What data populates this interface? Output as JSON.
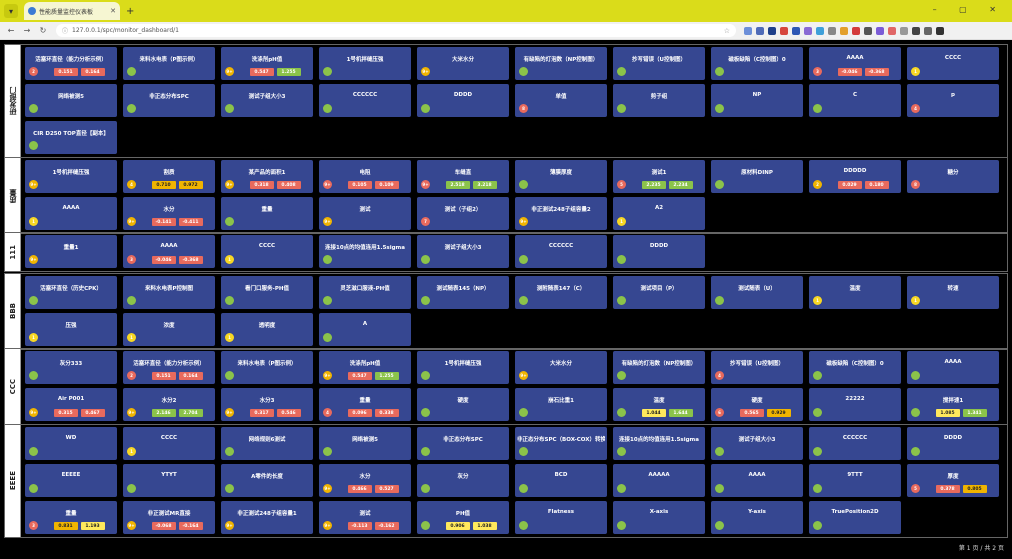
{
  "browser": {
    "tab_title": "性能质量监控仪表板",
    "url": "127.0.0.1/spc/monitor_dashboard/1",
    "window_controls": "– ▢ ✕"
  },
  "pagination": "第 1 页 / 共 2 页",
  "groups": [
    {
      "label": "研发部门",
      "rows": [
        [
          {
            "name": "活塞环直径（能力分析示例）",
            "ind": "r",
            "ind_text": "2",
            "vals": [
              [
                "0.151",
                "r"
              ],
              [
                "0.164",
                "r"
              ]
            ]
          },
          {
            "name": "来料水电表（P图示例）",
            "ind": "g"
          },
          {
            "name": "洗涤剂pH值",
            "ind": "o",
            "ind_text": "9+",
            "vals": [
              [
                "0.547",
                "r"
              ],
              [
                "1.255",
                "g"
              ]
            ]
          },
          {
            "name": "1号机拌缝压强",
            "ind": "g"
          },
          {
            "name": "大米水分",
            "ind": "o",
            "ind_text": "9+"
          },
          {
            "name": "有缺陷的灯泡数（NP控制图）",
            "ind": "g"
          },
          {
            "name": "抄写错误（U控制图）",
            "ind": "g"
          },
          {
            "name": "磁板缺陷（C控制图）0",
            "ind": "g"
          },
          {
            "name": "AAAA",
            "ind": "r",
            "ind_text": "3",
            "vals": [
              [
                "-0.046",
                "r"
              ],
              [
                "-0.368",
                "r"
              ]
            ]
          },
          {
            "name": "CCCC",
            "ind": "y",
            "ind_text": "1"
          }
        ],
        [
          {
            "name": "网络被测5",
            "ind": "g"
          },
          {
            "name": "非正态分布SPC",
            "ind": "g"
          },
          {
            "name": "测试子组大小3",
            "ind": "g"
          },
          {
            "name": "CCCCCC",
            "ind": "g"
          },
          {
            "name": "DDDD",
            "ind": "g"
          },
          {
            "name": "单值",
            "ind": "r",
            "ind_text": "8"
          },
          {
            "name": "剪子组",
            "ind": "g"
          },
          {
            "name": "NP",
            "ind": "g"
          },
          {
            "name": "C",
            "ind": "g"
          },
          {
            "name": "p",
            "ind": "r",
            "ind_text": "4"
          }
        ],
        [
          {
            "name": "CIR D250 TOP直径【副本】",
            "ind": "g"
          }
        ]
      ]
    },
    {
      "label": "质量",
      "rows": [
        [
          {
            "name": "1号机拌缝压强",
            "ind": "o",
            "ind_text": "9+"
          },
          {
            "name": "割质",
            "ind": "o",
            "ind_text": "4",
            "vals": [
              [
                "0.710",
                "o"
              ],
              [
                "0.972",
                "o"
              ]
            ]
          },
          {
            "name": "某产品的面积1",
            "ind": "o",
            "ind_text": "9+",
            "vals": [
              [
                "0.318",
                "r"
              ],
              [
                "0.408",
                "r"
              ]
            ]
          },
          {
            "name": "电阻",
            "ind": "r",
            "ind_text": "9+",
            "vals": [
              [
                "0.105",
                "r"
              ],
              [
                "0.109",
                "r"
              ]
            ]
          },
          {
            "name": "车缝直",
            "ind": "r",
            "ind_text": "9+",
            "vals": [
              [
                "2.518",
                "g"
              ],
              [
                "3.218",
                "g"
              ]
            ]
          },
          {
            "name": "薄膜厚度",
            "ind": "g"
          },
          {
            "name": "测试1",
            "ind": "r",
            "ind_text": "5",
            "vals": [
              [
                "2.235",
                "g"
              ],
              [
                "2.234",
                "g"
              ]
            ]
          },
          {
            "name": "原材料DINP",
            "ind": "g"
          },
          {
            "name": "DDDDD",
            "ind": "o",
            "ind_text": "2",
            "vals": [
              [
                "0.029",
                "r"
              ],
              [
                "0.180",
                "r"
              ]
            ]
          },
          {
            "name": "糖分",
            "ind": "r",
            "ind_text": "8"
          }
        ],
        [
          {
            "name": "AAAA",
            "ind": "y",
            "ind_text": "1"
          },
          {
            "name": "水分",
            "ind": "o",
            "ind_text": "9+",
            "vals": [
              [
                "-0.141",
                "r"
              ],
              [
                "-0.411",
                "r"
              ]
            ]
          },
          {
            "name": "重量",
            "ind": "g"
          },
          {
            "name": "测试",
            "ind": "o",
            "ind_text": "9+"
          },
          {
            "name": "测试（子组2）",
            "ind": "r",
            "ind_text": "7"
          },
          {
            "name": "非正测试248子组容量2",
            "ind": "o",
            "ind_text": "9+"
          },
          {
            "name": "A2",
            "ind": "y",
            "ind_text": "1"
          }
        ]
      ]
    },
    {
      "label": "111",
      "rows": [
        [
          {
            "name": "重量1",
            "ind": "o",
            "ind_text": "9+"
          },
          {
            "name": "AAAA",
            "ind": "r",
            "ind_text": "3",
            "vals": [
              [
                "-0.046",
                "r"
              ],
              [
                "-0.368",
                "r"
              ]
            ]
          },
          {
            "name": "CCCC",
            "ind": "y",
            "ind_text": "1"
          },
          {
            "name": "连接10点的均值连用1.5sigma",
            "ind": "g"
          },
          {
            "name": "测试子组大小3",
            "ind": "g"
          },
          {
            "name": "CCCCCC",
            "ind": "g"
          },
          {
            "name": "DDDD",
            "ind": "g"
          }
        ]
      ]
    },
    {
      "label": "BBB",
      "rows": [
        [
          {
            "name": "活塞环直径（历史CPK）",
            "ind": "g"
          },
          {
            "name": "来料水电表P控制图",
            "ind": "g"
          },
          {
            "name": "看门口服务-PH值",
            "ind": "g"
          },
          {
            "name": "灵芝滋口服液-PH值",
            "ind": "g"
          },
          {
            "name": "测试随表145（NP）",
            "ind": "g"
          },
          {
            "name": "测附随表147（C）",
            "ind": "g"
          },
          {
            "name": "测试项目（P）",
            "ind": "g"
          },
          {
            "name": "测试随表（U）",
            "ind": "g"
          },
          {
            "name": "温度",
            "ind": "y",
            "ind_text": "1"
          },
          {
            "name": "转速",
            "ind": "y",
            "ind_text": "1"
          }
        ],
        [
          {
            "name": "压强",
            "ind": "y",
            "ind_text": "1"
          },
          {
            "name": "浓度",
            "ind": "y",
            "ind_text": "1"
          },
          {
            "name": "透明度",
            "ind": "y",
            "ind_text": "1"
          },
          {
            "name": "A",
            "ind": "g"
          }
        ]
      ]
    },
    {
      "label": "CCC",
      "rows": [
        [
          {
            "name": "灰分333",
            "ind": "g"
          },
          {
            "name": "活塞环直径（能力分析示例）",
            "ind": "r",
            "ind_text": "2",
            "vals": [
              [
                "0.151",
                "r"
              ],
              [
                "0.164",
                "r"
              ]
            ]
          },
          {
            "name": "来料水电表（P图示例）",
            "ind": "g"
          },
          {
            "name": "洗涤剂pH值",
            "ind": "o",
            "ind_text": "9+",
            "vals": [
              [
                "0.547",
                "r"
              ],
              [
                "1.255",
                "g"
              ]
            ]
          },
          {
            "name": "1号机拌缝压强",
            "ind": "g"
          },
          {
            "name": "大米水分",
            "ind": "o",
            "ind_text": "9+"
          },
          {
            "name": "有缺陷的灯泡数（NP控制图）",
            "ind": "g"
          },
          {
            "name": "抄写错误（U控制图）",
            "ind": "r",
            "ind_text": "4"
          },
          {
            "name": "磁板缺陷（C控制图）0",
            "ind": "g"
          },
          {
            "name": "AAAA",
            "ind": "g"
          }
        ],
        [
          {
            "name": "Air P001",
            "ind": "o",
            "ind_text": "9+",
            "vals": [
              [
                "0.315",
                "r"
              ],
              [
                "0.467",
                "r"
              ]
            ]
          },
          {
            "name": "水分2",
            "ind": "o",
            "ind_text": "9+",
            "vals": [
              [
                "2.146",
                "g"
              ],
              [
                "2.704",
                "g"
              ]
            ]
          },
          {
            "name": "水分3",
            "ind": "o",
            "ind_text": "9+",
            "vals": [
              [
                "0.317",
                "r"
              ],
              [
                "0.546",
                "r"
              ]
            ]
          },
          {
            "name": "重量",
            "ind": "r",
            "ind_text": "4",
            "vals": [
              [
                "0.096",
                "r"
              ],
              [
                "0.338",
                "r"
              ]
            ]
          },
          {
            "name": "硬度",
            "ind": "g"
          },
          {
            "name": "崩石比重1",
            "ind": "g"
          },
          {
            "name": "温度",
            "ind": "g",
            "vals": [
              [
                "1.044",
                "y"
              ],
              [
                "1.644",
                "g"
              ]
            ]
          },
          {
            "name": "硬度",
            "ind": "r",
            "ind_text": "6",
            "vals": [
              [
                "0.565",
                "r"
              ],
              [
                "0.929",
                "o"
              ]
            ]
          },
          {
            "name": "22222",
            "ind": "g"
          },
          {
            "name": "搅拌速1",
            "ind": "g",
            "vals": [
              [
                "1.085",
                "y"
              ],
              [
                "1.341",
                "g"
              ]
            ]
          }
        ]
      ]
    },
    {
      "label": "EEEE",
      "rows": [
        [
          {
            "name": "WD",
            "ind": "g"
          },
          {
            "name": "CCCC",
            "ind": "y",
            "ind_text": "1"
          },
          {
            "name": "网络规则6测试",
            "ind": "g"
          },
          {
            "name": "网络被测5",
            "ind": "g"
          },
          {
            "name": "非正态分布SPC",
            "ind": "g"
          },
          {
            "name": "非正态分布SPC（BOX-COX）转换",
            "ind": "g"
          },
          {
            "name": "连接10点的均值连用1.5sigma",
            "ind": "g"
          },
          {
            "name": "测试子组大小3",
            "ind": "g"
          },
          {
            "name": "CCCCCC",
            "ind": "g"
          },
          {
            "name": "DDDD",
            "ind": "g"
          }
        ],
        [
          {
            "name": "EEEEE",
            "ind": "g"
          },
          {
            "name": "YTYT",
            "ind": "g"
          },
          {
            "name": "A零件的长度",
            "ind": "g"
          },
          {
            "name": "水分",
            "ind": "o",
            "ind_text": "9+",
            "vals": [
              [
                "0.466",
                "r"
              ],
              [
                "0.527",
                "r"
              ]
            ]
          },
          {
            "name": "灰分",
            "ind": "g"
          },
          {
            "name": "BCD",
            "ind": "g"
          },
          {
            "name": "AAAAA",
            "ind": "g"
          },
          {
            "name": "AAAA",
            "ind": "g"
          },
          {
            "name": "9TTT",
            "ind": "g"
          },
          {
            "name": "厚度",
            "ind": "r",
            "ind_text": "5",
            "vals": [
              [
                "0.378",
                "r"
              ],
              [
                "0.805",
                "o"
              ]
            ]
          }
        ],
        [
          {
            "name": "重量",
            "ind": "r",
            "ind_text": "3",
            "vals": [
              [
                "0.831",
                "o"
              ],
              [
                "1.193",
                "y"
              ]
            ]
          },
          {
            "name": "非正测试MR直接",
            "ind": "o",
            "ind_text": "9+",
            "vals": [
              [
                "-0.068",
                "r"
              ],
              [
                "-0.164",
                "r"
              ]
            ]
          },
          {
            "name": "非正测试248子组容量1",
            "ind": "o",
            "ind_text": "9+"
          },
          {
            "name": "测试",
            "ind": "o",
            "ind_text": "9+",
            "vals": [
              [
                "-0.113",
                "r"
              ],
              [
                "-0.162",
                "r"
              ]
            ]
          },
          {
            "name": "PH值",
            "ind": "g",
            "vals": [
              [
                "0.906",
                "y"
              ],
              [
                "1.038",
                "y"
              ]
            ]
          },
          {
            "name": "Flatness",
            "ind": "g"
          },
          {
            "name": "X-axis",
            "ind": "g"
          },
          {
            "name": "Y-axis",
            "ind": "g"
          },
          {
            "name": "TruePosition2D",
            "ind": "g"
          }
        ]
      ]
    }
  ]
}
